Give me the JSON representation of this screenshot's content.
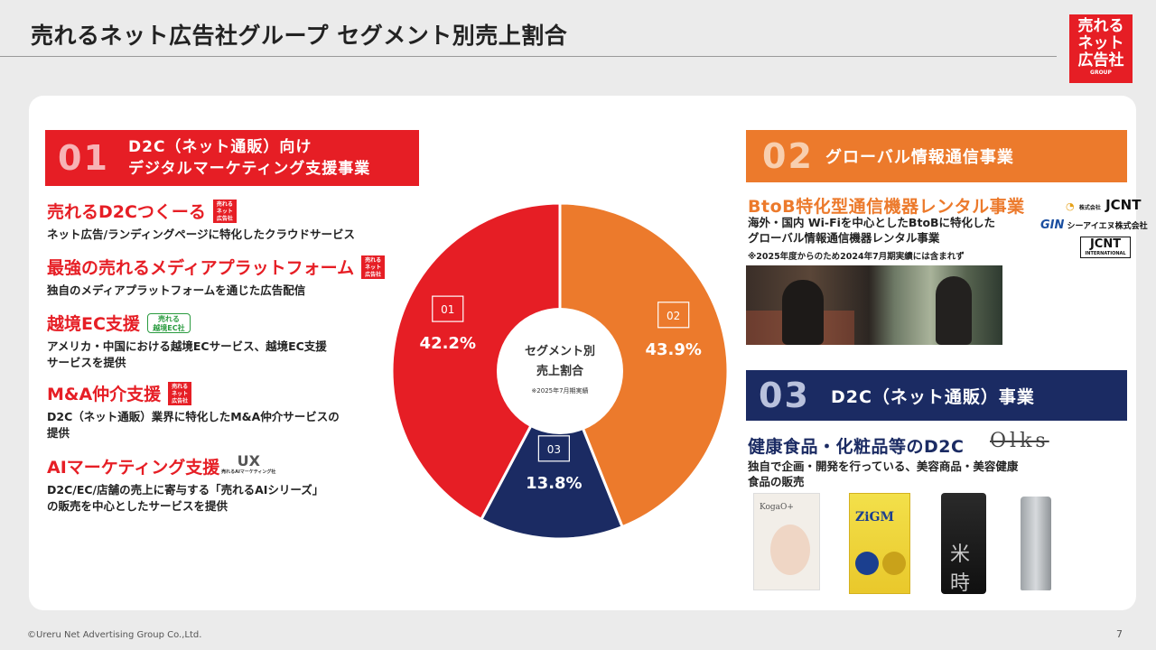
{
  "header": {
    "title": "売れるネット広告社グループ セグメント別売上割合",
    "logo_line1": "売れる",
    "logo_line2": "ネット",
    "logo_line3": "広告社",
    "logo_sub": "GROUP"
  },
  "section01": {
    "num": "01",
    "title_line1": "D2C（ネット通販）向け",
    "title_line2": "デジタルマーケティング支援事業",
    "items": [
      {
        "title": "売れるD2Cつくーる",
        "desc1": "ネット広告/ランディングページに特化したクラウドサービス",
        "desc2": ""
      },
      {
        "title": "最強の売れるメディアプラットフォーム",
        "desc1": "独自のメディアプラットフォームを通じた広告配信",
        "desc2": ""
      },
      {
        "title": "越境EC支援",
        "desc1": "アメリカ・中国における越境ECサービス、越境EC支援",
        "desc2": "サービスを提供"
      },
      {
        "title": "M&A仲介支援",
        "desc1": "D2C（ネット通販）業界に特化したM&A仲介サービスの",
        "desc2": "提供"
      },
      {
        "title": "AIマーケティング支援",
        "desc1": "D2C/EC/店舗の売上に寄与する「売れるAIシリーズ」",
        "desc2": "の販売を中心としたサービスを提供"
      }
    ],
    "mini_logo_l1": "売れる",
    "mini_logo_l2": "ネット",
    "mini_logo_l3": "広告社",
    "ec_logo_l1": "売れる",
    "ec_logo_l2": "越境EC社",
    "ai_logo_mark": "UX",
    "ai_logo_cap": "売れるAIマーケティング社"
  },
  "section02": {
    "num": "02",
    "title": "グローバル情報通信事業",
    "sub_title": "BtoB特化型通信機器レンタル事業",
    "desc1": "海外・国内 Wi-Fiを中心としたBtoBに特化した",
    "desc2": "グローバル情報通信機器レンタル事業",
    "note": "※2025年度からのため2024年7月期実績には含まれず",
    "logo1": "JCNT",
    "logo1_prefix": "株式会社",
    "logo2": "シーアイエヌ株式会社",
    "logo2_mark": "GIN",
    "logo3": "JCNT",
    "logo3_sub": "INTERNATIONAL"
  },
  "section03": {
    "num": "03",
    "title": "D2C（ネット通販）事業",
    "sub_title": "健康食品・化粧品等のD2C",
    "brand": "Olks",
    "desc1": "独自で企画・開発を行っている、美容商品・美容健康",
    "desc2": "食品の販売",
    "prod1_label": "KogaO+",
    "prod2_label": "ZiGM",
    "prod3_label": "米時"
  },
  "chart_data": {
    "type": "pie",
    "title": "セグメント別売上割合",
    "note": "※2025年7月期実績",
    "center_line1": "セグメント別",
    "center_line2": "売上割合",
    "categories": [
      "01",
      "02",
      "03"
    ],
    "values": [
      42.2,
      43.9,
      13.8
    ],
    "labels": [
      "42.2%",
      "43.9%",
      "13.8%"
    ],
    "colors": [
      "#e61e25",
      "#ec7a2c",
      "#1b2b63"
    ]
  },
  "footer": {
    "copyright": "©Ureru Net Advertising Group Co.,Ltd.",
    "page": "7"
  }
}
